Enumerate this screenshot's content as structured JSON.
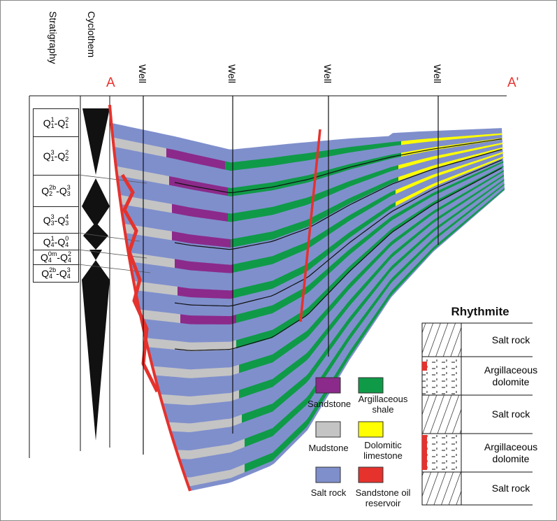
{
  "stratigraphy_header": "Stratigraphy",
  "cyclothem_header": "Cyclothem",
  "section_start": "A",
  "section_end": "A'",
  "wells": [
    "Well",
    "Well",
    "Well",
    "Well"
  ],
  "strata": [
    [
      {
        "t": "Q",
        "sup": "1",
        "sub": "1"
      },
      "-",
      {
        "t": "Q",
        "sup": "2",
        "sub": "1"
      }
    ],
    [
      {
        "t": "Q",
        "sup": "3",
        "sub": "1"
      },
      "-",
      {
        "t": "Q",
        "sup": "2",
        "sub": "2"
      }
    ],
    [
      {
        "t": "Q",
        "sup": "2b",
        "sub": "2"
      },
      "-",
      {
        "t": "Q",
        "sup": "3",
        "sub": "3"
      }
    ],
    [
      {
        "t": "Q",
        "sup": "3",
        "sub": "3"
      },
      "-",
      {
        "t": "Q",
        "sup": "4",
        "sub": "3"
      }
    ],
    [
      {
        "t": "Q",
        "sup": "1",
        "sub": "4"
      },
      "-",
      {
        "t": "Q",
        "sup": "0",
        "sub": "4"
      }
    ],
    [
      {
        "t": "Q",
        "sup": "0m",
        "sub": "4"
      },
      "-",
      {
        "t": "Q",
        "sup": "2",
        "sub": "4"
      }
    ],
    [
      {
        "t": "Q",
        "sup": "2b",
        "sub": "4"
      },
      "-",
      {
        "t": "Q",
        "sup": "3",
        "sub": "4"
      }
    ]
  ],
  "legend": [
    "Sandstone",
    "Argillaceous shale",
    "Mudstone",
    "Dolomitic limestone",
    "Salt rock",
    "Sandstone oil reservoir"
  ],
  "rhythmite": {
    "title": "Rhythmite",
    "layers": [
      "Salt rock",
      "Argillaceous dolomite",
      "Salt rock",
      "Argillaceous dolomite",
      "Salt rock"
    ]
  }
}
